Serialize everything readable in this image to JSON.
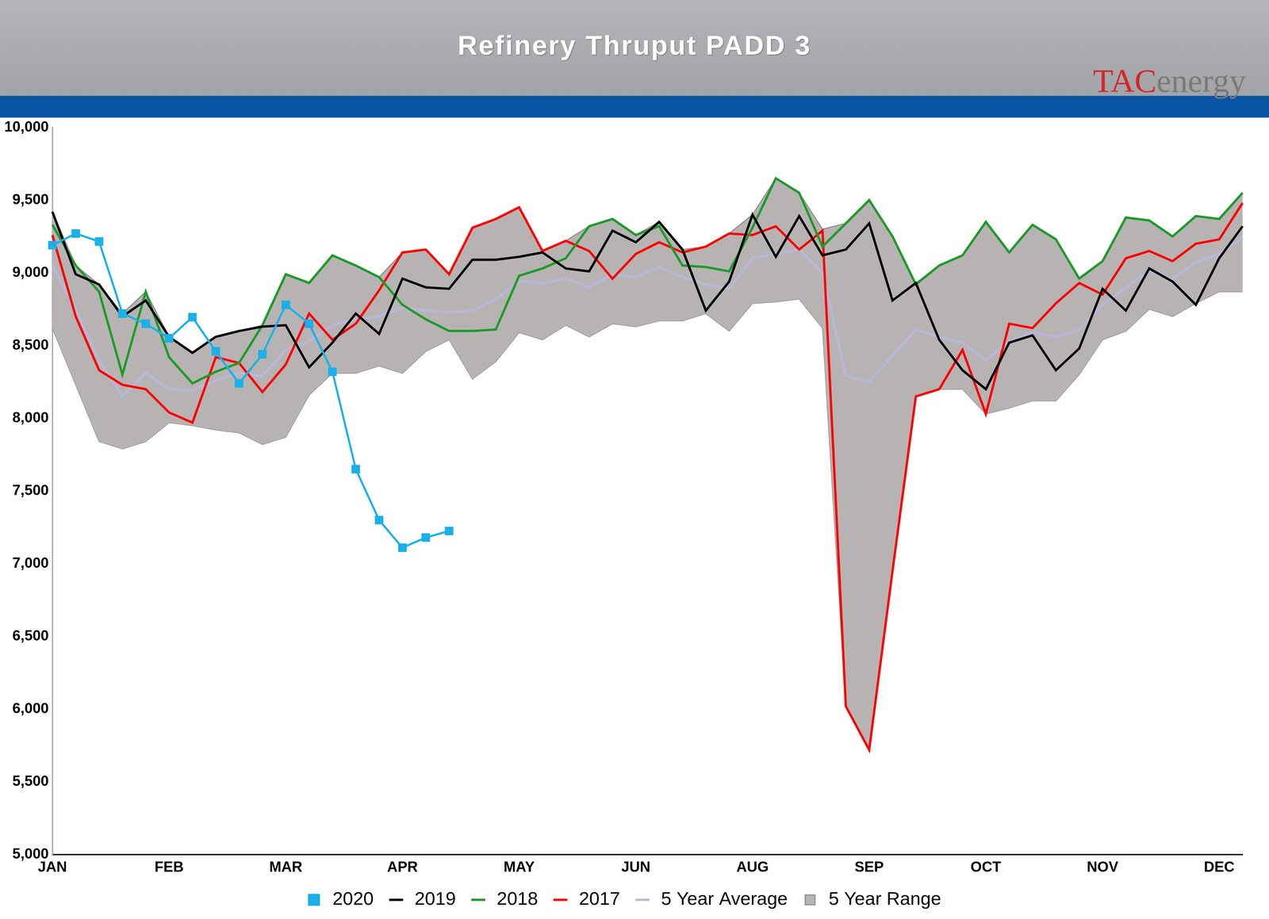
{
  "chart_data": {
    "type": "line",
    "title": "Refinery Thruput PADD 3",
    "logo": [
      "TAC",
      "energy"
    ],
    "categories": [
      "JAN",
      null,
      null,
      null,
      null,
      "FEB",
      null,
      null,
      null,
      null,
      "MAR",
      null,
      null,
      null,
      null,
      "APR",
      null,
      null,
      null,
      null,
      "MAY",
      null,
      null,
      null,
      null,
      "JUN",
      null,
      null,
      null,
      null,
      "AUG",
      null,
      null,
      null,
      null,
      "SEP",
      null,
      null,
      null,
      null,
      "OCT",
      null,
      null,
      null,
      null,
      "NOV",
      null,
      null,
      null,
      null,
      "DEC",
      null
    ],
    "ylim": [
      5000,
      10000
    ],
    "yticks": [
      {
        "value": 5000,
        "label": "5,000"
      },
      {
        "value": 5500,
        "label": "5,500"
      },
      {
        "value": 6000,
        "label": "6,000"
      },
      {
        "value": 6500,
        "label": "6,500"
      },
      {
        "value": 7000,
        "label": "7,000"
      },
      {
        "value": 7500,
        "label": "7,500"
      },
      {
        "value": 8000,
        "label": "8,000"
      },
      {
        "value": 8500,
        "label": "8,500"
      },
      {
        "value": 9000,
        "label": "9,000"
      },
      {
        "value": 9500,
        "label": "9,500"
      },
      {
        "value": 10000,
        "label": "10,000"
      }
    ],
    "grid": false,
    "legend": "bottom",
    "series": [
      {
        "name": "5 Year Range",
        "type": "range",
        "color": "#b7b3b3",
        "values": [
          [
            8620,
            9420
          ],
          [
            8230,
            9050
          ],
          [
            7840,
            8920
          ],
          [
            7790,
            8720
          ],
          [
            7840,
            8870
          ],
          [
            7970,
            8560
          ],
          [
            7950,
            8450
          ],
          [
            7920,
            8560
          ],
          [
            7900,
            8600
          ],
          [
            7820,
            8640
          ],
          [
            7870,
            8990
          ],
          [
            8160,
            8930
          ],
          [
            8310,
            9120
          ],
          [
            8310,
            9050
          ],
          [
            8360,
            8970
          ],
          [
            8310,
            9140
          ],
          [
            8460,
            9160
          ],
          [
            8540,
            8990
          ],
          [
            8270,
            9310
          ],
          [
            8390,
            9370
          ],
          [
            8590,
            9450
          ],
          [
            8540,
            9150
          ],
          [
            8640,
            9220
          ],
          [
            8560,
            9320
          ],
          [
            8650,
            9370
          ],
          [
            8630,
            9260
          ],
          [
            8670,
            9350
          ],
          [
            8670,
            9160
          ],
          [
            8720,
            9180
          ],
          [
            8600,
            9270
          ],
          [
            8790,
            9400
          ],
          [
            8800,
            9650
          ],
          [
            8820,
            9550
          ],
          [
            8620,
            9300
          ],
          [
            6020,
            9340
          ],
          [
            5720,
            9500
          ],
          [
            6950,
            9250
          ],
          [
            8150,
            8930
          ],
          [
            8200,
            9050
          ],
          [
            8200,
            9120
          ],
          [
            8030,
            9350
          ],
          [
            8070,
            9140
          ],
          [
            8120,
            9330
          ],
          [
            8120,
            9230
          ],
          [
            8300,
            8960
          ],
          [
            8540,
            9080
          ],
          [
            8600,
            9380
          ],
          [
            8750,
            9360
          ],
          [
            8700,
            9250
          ],
          [
            8790,
            9390
          ],
          [
            8870,
            9370
          ],
          [
            8870,
            9550
          ]
        ]
      },
      {
        "name": "5 Year Average",
        "color": "#b8b8dc",
        "values": [
          9050,
          8750,
          8400,
          8150,
          8310,
          8200,
          8190,
          8260,
          8310,
          8290,
          8470,
          8530,
          8640,
          8680,
          8700,
          8760,
          8740,
          8730,
          8740,
          8820,
          8940,
          8930,
          8960,
          8900,
          8990,
          8970,
          9040,
          8970,
          8920,
          8890,
          9100,
          9130,
          9160,
          9000,
          8290,
          8250,
          8430,
          8610,
          8560,
          8520,
          8400,
          8530,
          8590,
          8560,
          8610,
          8780,
          8900,
          9010,
          8960,
          9070,
          9130,
          9240
        ]
      },
      {
        "name": "2017",
        "color": "#ff0000",
        "values": [
          9260,
          8700,
          8330,
          8230,
          8200,
          8040,
          7970,
          8420,
          8380,
          8180,
          8370,
          8720,
          8540,
          8650,
          8880,
          9140,
          9160,
          8990,
          9310,
          9370,
          9450,
          9150,
          9220,
          9150,
          8960,
          9130,
          9210,
          9140,
          9180,
          9270,
          9260,
          9320,
          9160,
          9290,
          6020,
          5720,
          6950,
          8150,
          8200,
          8470,
          8030,
          8650,
          8620,
          8790,
          8930,
          8850,
          9100,
          9150,
          9080,
          9200,
          9230,
          9480
        ]
      },
      {
        "name": "2018",
        "color": "#1e9a2c",
        "values": [
          9330,
          9050,
          8870,
          8300,
          8870,
          8420,
          8240,
          8320,
          8380,
          8640,
          8990,
          8930,
          9120,
          9050,
          8970,
          8780,
          8680,
          8600,
          8600,
          8610,
          8980,
          9030,
          9100,
          9320,
          9370,
          9260,
          9320,
          9050,
          9040,
          9010,
          9310,
          9650,
          9550,
          9180,
          9340,
          9500,
          9250,
          8920,
          9050,
          9120,
          9350,
          9140,
          9330,
          9230,
          8960,
          9080,
          9380,
          9360,
          9250,
          9390,
          9370,
          9550
        ]
      },
      {
        "name": "2019",
        "color": "#000000",
        "values": [
          9420,
          8990,
          8920,
          8700,
          8810,
          8560,
          8450,
          8560,
          8600,
          8630,
          8640,
          8350,
          8520,
          8720,
          8580,
          8960,
          8900,
          8890,
          9090,
          9090,
          9110,
          9140,
          9030,
          9010,
          9290,
          9210,
          9350,
          9160,
          8740,
          8940,
          9400,
          9110,
          9390,
          9120,
          9160,
          9340,
          8810,
          8930,
          8540,
          8330,
          8200,
          8520,
          8570,
          8330,
          8480,
          8890,
          8740,
          9030,
          8940,
          8780,
          9100,
          9320
        ]
      },
      {
        "name": "2020",
        "color": "#1ab0e8",
        "marker": "square",
        "values": [
          9190,
          9270,
          9215,
          8720,
          8650,
          8550,
          8695,
          8460,
          8240,
          8440,
          8780,
          8650,
          8320,
          7650,
          7300,
          7110,
          7180,
          7225,
          null,
          null,
          null,
          null,
          null,
          null,
          null,
          null,
          null,
          null,
          null,
          null,
          null,
          null,
          null,
          null,
          null,
          null,
          null,
          null,
          null,
          null,
          null,
          null,
          null,
          null,
          null,
          null,
          null,
          null,
          null,
          null,
          null,
          null
        ]
      }
    ]
  }
}
